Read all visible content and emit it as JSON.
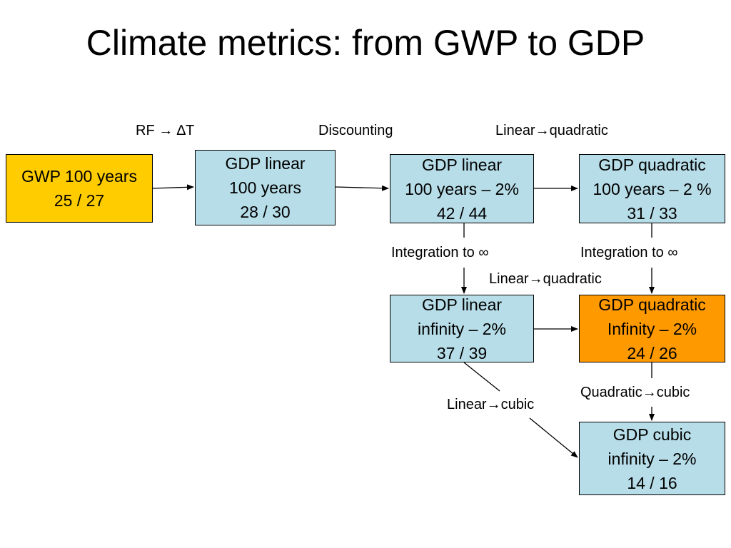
{
  "title": "Climate metrics: from GWP to GDP",
  "colors": {
    "blue_box": "#b7dde8",
    "yellow_box": "#ffcc00",
    "orange_box": "#ff9900"
  },
  "boxes": {
    "gwp100": {
      "line1": "GWP 100 years",
      "line2": "25 / 27"
    },
    "gdp_lin_100": {
      "line1": "GDP linear",
      "line2": "100 years",
      "line3": "28 / 30"
    },
    "gdp_lin_100_2": {
      "line1": "GDP linear",
      "line2": "100 years – 2%",
      "line3": "42 / 44"
    },
    "gdp_quad_100_2": {
      "line1": "GDP quadratic",
      "line2": "100 years – 2 %",
      "line3": "31 / 33"
    },
    "gdp_lin_inf": {
      "line1": "GDP linear",
      "line2": "infinity – 2%",
      "line3": "37 / 39"
    },
    "gdp_quad_inf": {
      "line1": "GDP quadratic",
      "line2": "Infinity – 2%",
      "line3": "24 / 26"
    },
    "gdp_cubic_inf": {
      "line1": "GDP cubic",
      "line2": "infinity – 2%",
      "line3": "14 / 16"
    }
  },
  "labels": {
    "rf_dt": "RF → ∆T",
    "discounting": "Discounting",
    "lin_quad_top": "Linear→quadratic",
    "integration_left": "Integration to ∞",
    "integration_right": "Integration to ∞",
    "lin_quad_mid": "Linear→quadratic",
    "quad_cubic": "Quadratic→cubic",
    "lin_cubic": "Linear→cubic"
  }
}
